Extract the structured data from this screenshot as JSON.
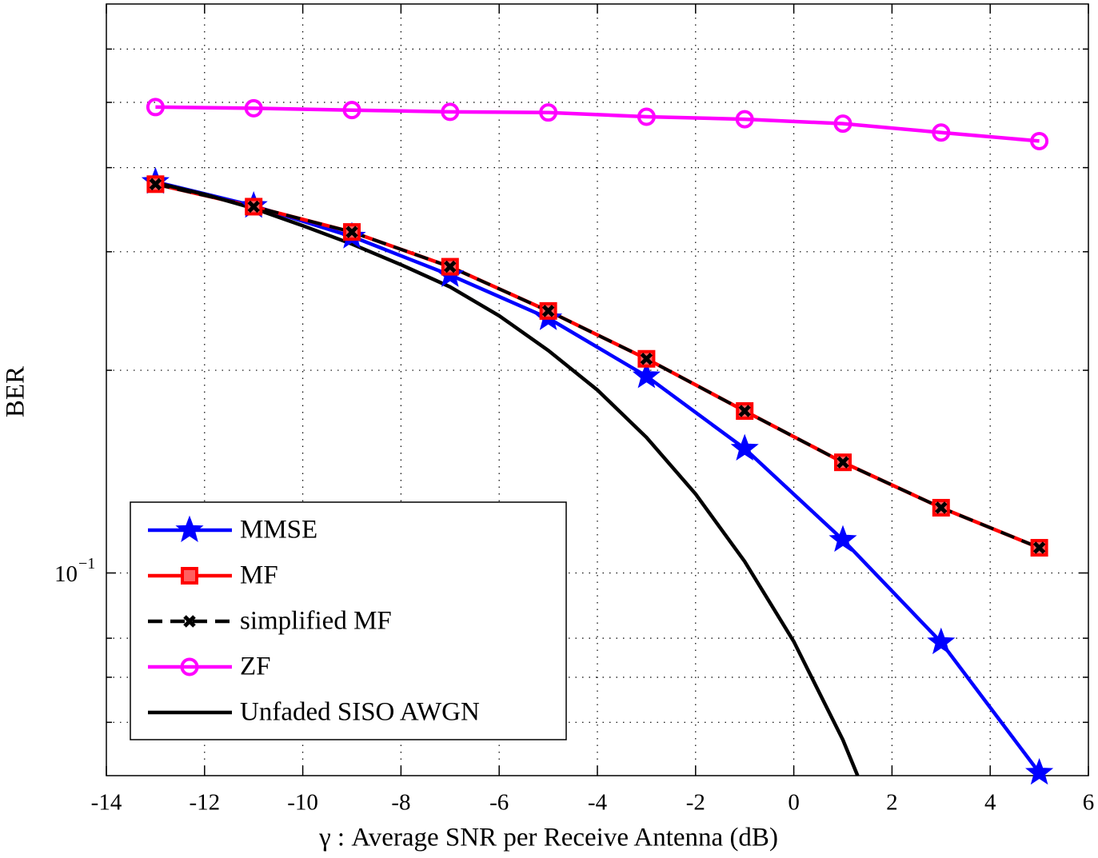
{
  "chart_data": {
    "type": "line",
    "xlabel": "γ : Average SNR per Receive Antenna (dB)",
    "ylabel": "BER",
    "xlim": [
      -14,
      6
    ],
    "xticks": [
      -14,
      -12,
      -10,
      -8,
      -6,
      -4,
      -2,
      0,
      2,
      4,
      6
    ],
    "ylim": [
      0.05,
      0.7
    ],
    "log_y": true,
    "yticks": [
      {
        "value": 0.1,
        "label": "10",
        "label_exponent": "−1"
      }
    ],
    "y_minor_ticks": [
      0.06,
      0.07,
      0.08,
      0.2,
      0.3,
      0.4,
      0.5,
      0.6
    ],
    "grid": true,
    "legend": "southwest",
    "series": [
      {
        "name": "MMSE",
        "color": "#0000ff",
        "marker": "star",
        "dashed": false,
        "x": [
          -13,
          -11,
          -9,
          -7,
          -5,
          -3,
          -1,
          1,
          3,
          5
        ],
        "values": [
          0.381,
          0.351,
          0.316,
          0.277,
          0.239,
          0.196,
          0.153,
          0.112,
          0.0789,
          0.0505
        ]
      },
      {
        "name": "MF",
        "color": "#ff0000",
        "marker": "square",
        "dashed": false,
        "x": [
          -13,
          -11,
          -9,
          -7,
          -5,
          -3,
          -1,
          1,
          3,
          5
        ],
        "values": [
          0.378,
          0.35,
          0.321,
          0.285,
          0.245,
          0.208,
          0.174,
          0.146,
          0.125,
          0.109
        ]
      },
      {
        "name": "simplified MF",
        "color": "#000000",
        "marker": "x",
        "dashed": true,
        "x": [
          -13,
          -11,
          -9,
          -7,
          -5,
          -3,
          -1,
          1,
          3,
          5
        ],
        "values": [
          0.378,
          0.35,
          0.321,
          0.285,
          0.245,
          0.208,
          0.174,
          0.146,
          0.125,
          0.109
        ]
      },
      {
        "name": "ZF",
        "color": "#ff00ff",
        "marker": "circle",
        "dashed": false,
        "x": [
          -13,
          -11,
          -9,
          -7,
          -5,
          -3,
          -1,
          1,
          3,
          5
        ],
        "values": [
          0.492,
          0.49,
          0.487,
          0.484,
          0.483,
          0.476,
          0.472,
          0.465,
          0.451,
          0.438
        ]
      },
      {
        "name": "Unfaded SISO AWGN",
        "color": "#000000",
        "marker": "none",
        "dashed": false,
        "x": [
          -13,
          -12,
          -11,
          -10,
          -9,
          -8,
          -7,
          -6,
          -5,
          -4,
          -3,
          -2,
          -1,
          0,
          1,
          1.3
        ],
        "values": [
          0.38,
          0.365,
          0.348,
          0.328,
          0.308,
          0.287,
          0.266,
          0.241,
          0.214,
          0.187,
          0.159,
          0.131,
          0.104,
          0.0791,
          0.0565,
          0.05
        ]
      }
    ]
  }
}
